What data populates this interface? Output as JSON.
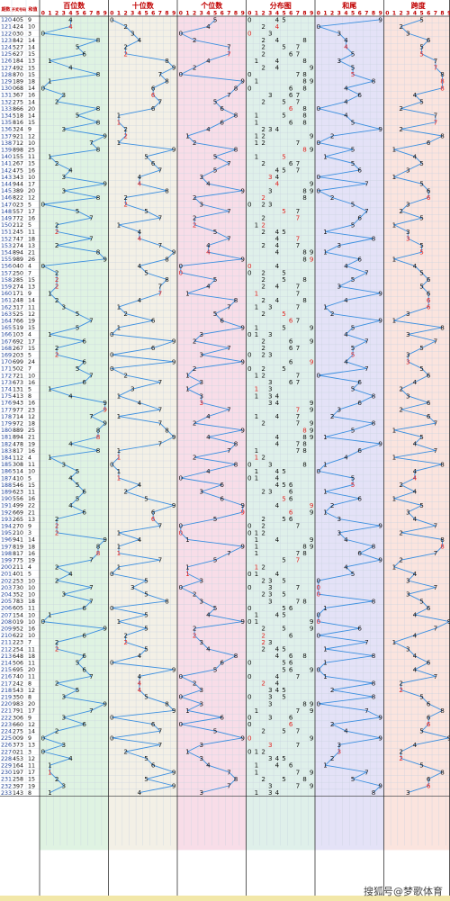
{
  "chart_data": {
    "type": "table",
    "title": "",
    "header": {
      "period": "期数",
      "number": "开奖号码",
      "sum": "和值"
    },
    "sections": [
      {
        "key": "hundreds",
        "label": "百位数",
        "color": "#dff3e2"
      },
      {
        "key": "tens",
        "label": "十位数",
        "color": "#f3f0e6"
      },
      {
        "key": "units",
        "label": "个位数",
        "color": "#f8dde8"
      },
      {
        "key": "dist",
        "label": "分布图",
        "color": "#dff0ea"
      },
      {
        "key": "tail",
        "label": "和尾",
        "color": "#e4e2f7"
      },
      {
        "key": "span",
        "label": "跨度",
        "color": "#fbe4de"
      }
    ],
    "digits": [
      "0",
      "1",
      "2",
      "3",
      "4",
      "5",
      "6",
      "7",
      "8",
      "9"
    ],
    "rows": [
      [
        "120",
        "405"
      ],
      [
        "121",
        "424"
      ],
      [
        "122",
        "030"
      ],
      [
        "123",
        "842"
      ],
      [
        "124",
        "527"
      ],
      [
        "125",
        "627"
      ],
      [
        "126",
        "184"
      ],
      [
        "127",
        "492"
      ],
      [
        "128",
        "870"
      ],
      [
        "129",
        "189"
      ],
      [
        "130",
        "068"
      ],
      [
        "131",
        "367"
      ],
      [
        "132",
        "275"
      ],
      [
        "133",
        "866"
      ],
      [
        "134",
        "518"
      ],
      [
        "135",
        "816"
      ],
      [
        "136",
        "324"
      ],
      [
        "137",
        "921"
      ],
      [
        "138",
        "712"
      ],
      [
        "139",
        "898"
      ],
      [
        "140",
        "155"
      ],
      [
        "141",
        "267"
      ],
      [
        "142",
        "475"
      ],
      [
        "143",
        "343"
      ],
      [
        "144",
        "944"
      ],
      [
        "145",
        "389"
      ],
      [
        "146",
        "822"
      ],
      [
        "147",
        "023"
      ],
      [
        "148",
        "557"
      ],
      [
        "149",
        "772"
      ],
      [
        "150",
        "212"
      ],
      [
        "151",
        "245"
      ],
      [
        "152",
        "747"
      ],
      [
        "153",
        "274"
      ],
      [
        "154",
        "894"
      ],
      [
        "155",
        "989"
      ],
      [
        "156",
        "040"
      ],
      [
        "157",
        "250"
      ],
      [
        "158",
        "285"
      ],
      [
        "159",
        "274"
      ],
      [
        "160",
        "171"
      ],
      [
        "161",
        "248"
      ],
      [
        "162",
        "317"
      ],
      [
        "163",
        "525"
      ],
      [
        "164",
        "766"
      ],
      [
        "165",
        "519"
      ],
      [
        "166",
        "103"
      ],
      [
        "167",
        "692"
      ],
      [
        "168",
        "267"
      ],
      [
        "169",
        "203"
      ],
      [
        "170",
        "699"
      ],
      [
        "171",
        "502"
      ],
      [
        "172",
        "721"
      ],
      [
        "173",
        "673"
      ],
      [
        "174",
        "131"
      ],
      [
        "175",
        "413"
      ],
      [
        "176",
        "943"
      ],
      [
        "177",
        "977"
      ],
      [
        "178",
        "714"
      ],
      [
        "179",
        "972"
      ],
      [
        "180",
        "889"
      ],
      [
        "181",
        "894"
      ],
      [
        "182",
        "478"
      ],
      [
        "183",
        "817"
      ],
      [
        "184",
        "112"
      ],
      [
        "185",
        "308"
      ],
      [
        "186",
        "514"
      ],
      [
        "187",
        "410"
      ],
      [
        "188",
        "546"
      ],
      [
        "189",
        "623"
      ],
      [
        "190",
        "556"
      ],
      [
        "191",
        "499"
      ],
      [
        "192",
        "669"
      ],
      [
        "193",
        "265"
      ],
      [
        "194",
        "270"
      ],
      [
        "195",
        "210"
      ],
      [
        "196",
        "941"
      ],
      [
        "197",
        "819"
      ],
      [
        "198",
        "817"
      ],
      [
        "199",
        "775"
      ],
      [
        "200",
        "211"
      ],
      [
        "201",
        "401"
      ],
      [
        "202",
        "253"
      ],
      [
        "203",
        "730"
      ],
      [
        "204",
        "352"
      ],
      [
        "205",
        "783"
      ],
      [
        "206",
        "605"
      ],
      [
        "207",
        "154"
      ],
      [
        "208",
        "019"
      ],
      [
        "209",
        "952"
      ],
      [
        "210",
        "622"
      ],
      [
        "211",
        "223"
      ],
      [
        "212",
        "254"
      ],
      [
        "213",
        "648"
      ],
      [
        "214",
        "506"
      ],
      [
        "215",
        "695"
      ],
      [
        "216",
        "740"
      ],
      [
        "217",
        "242"
      ],
      [
        "218",
        "543"
      ],
      [
        "219",
        "350"
      ],
      [
        "220",
        "983"
      ],
      [
        "221",
        "791"
      ],
      [
        "222",
        "306"
      ],
      [
        "223",
        "660"
      ],
      [
        "224",
        "275"
      ],
      [
        "225",
        "009"
      ],
      [
        "226",
        "373"
      ],
      [
        "227",
        "021"
      ],
      [
        "228",
        "453"
      ],
      [
        "229",
        "164"
      ],
      [
        "230",
        "197"
      ],
      [
        "231",
        "258"
      ],
      [
        "232",
        "397"
      ],
      [
        "233",
        "143"
      ]
    ],
    "watermark": "搜狐号@梦歌体育"
  }
}
